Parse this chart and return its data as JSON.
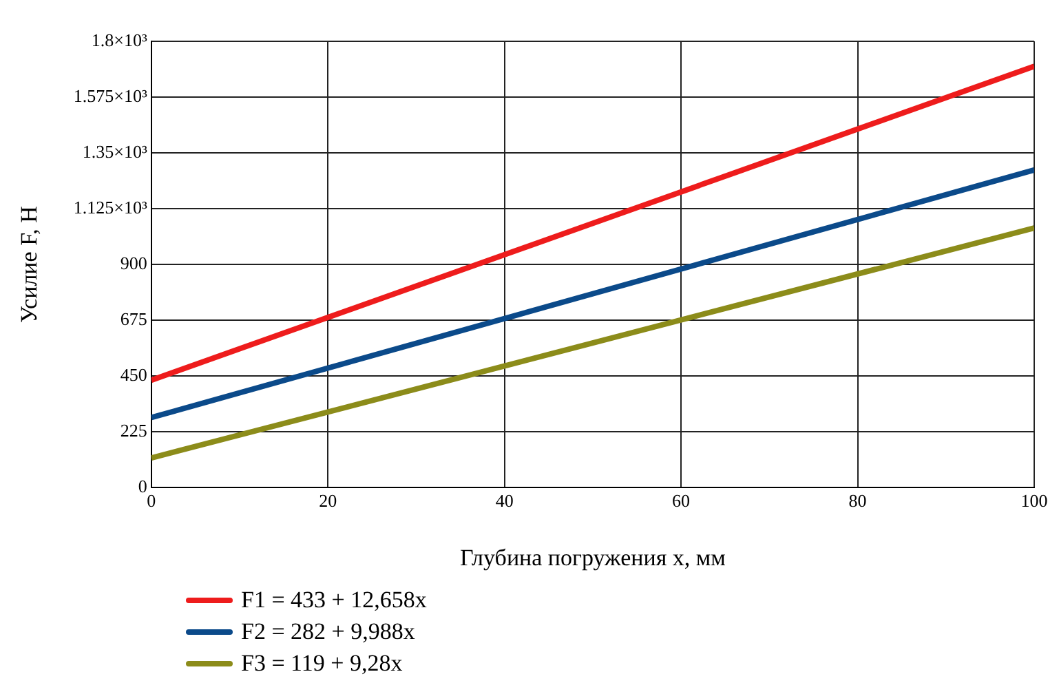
{
  "chart_data": {
    "type": "line",
    "xlabel": "Глубина погружения x, мм",
    "ylabel": "Усилие F, Н",
    "x": [
      0,
      100
    ],
    "series": [
      {
        "name": "F1 = 433 + 12,658x",
        "color": "#ee1c1c",
        "values": [
          433,
          1699
        ]
      },
      {
        "name": "F2 = 282 + 9,988x",
        "color": "#0b4a8a",
        "values": [
          282,
          1281
        ]
      },
      {
        "name": "F3 = 119 + 9,28x",
        "color": "#8c8c1a",
        "values": [
          119,
          1047
        ]
      }
    ],
    "xlim": [
      0,
      100
    ],
    "xticks": [
      0,
      20,
      40,
      60,
      80,
      100
    ],
    "ylim": [
      0,
      1800
    ],
    "yticks": [
      0,
      225,
      450,
      675,
      900,
      {
        "value": 1125,
        "label": "1.125×10³"
      },
      {
        "value": 1350,
        "label": "1.35×10³"
      },
      {
        "value": 1575,
        "label": "1.575×10³"
      },
      {
        "value": 1800,
        "label": "1.8×10³"
      }
    ],
    "grid": true,
    "legend": "bottom left",
    "line_style": "solid",
    "marker": "none"
  }
}
